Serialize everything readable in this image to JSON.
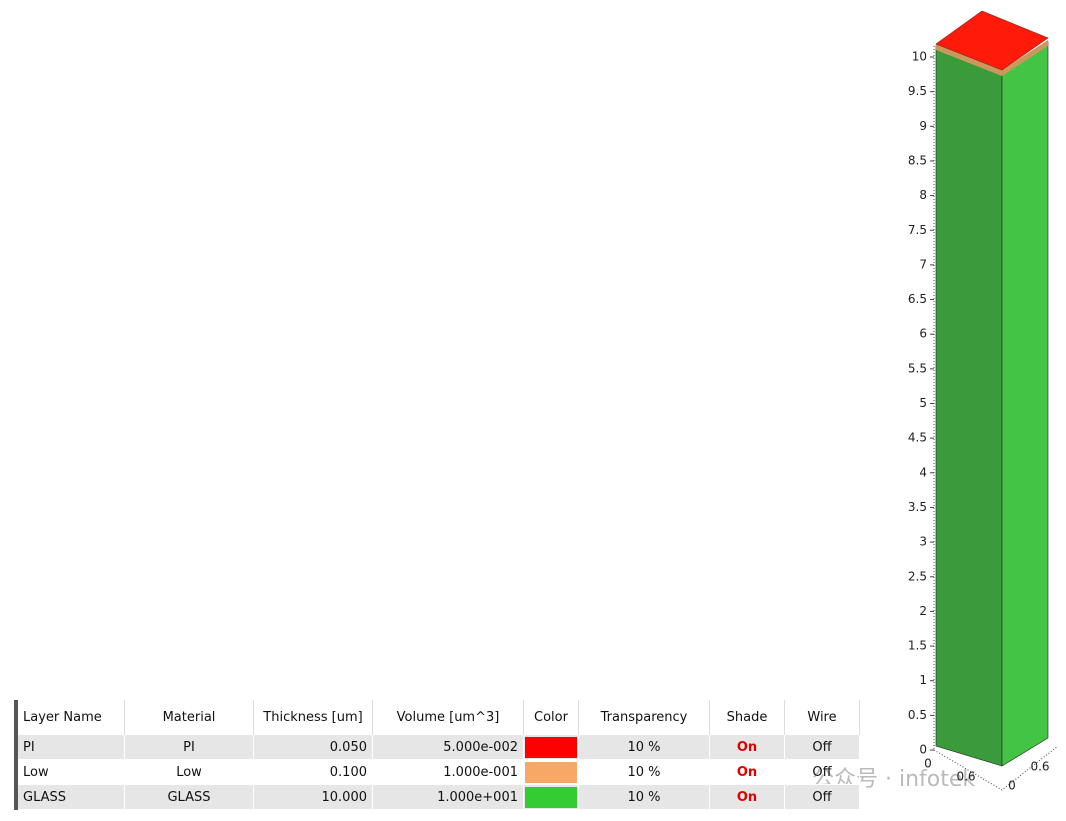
{
  "table": {
    "headers": [
      "Layer Name",
      "Material",
      "Thickness [um]",
      "Volume [um^3]",
      "Color",
      "Transparency",
      "Shade",
      "Wire"
    ],
    "rows": [
      [
        "PI",
        "PI",
        "0.050",
        "5.000e-002",
        "#ff0000",
        "10 %",
        "On",
        "Off"
      ],
      [
        "Low",
        "Low",
        "0.100",
        "1.000e-001",
        "#f7a866",
        "10 %",
        "On",
        "Off"
      ],
      [
        "GLASS",
        "GLASS",
        "10.000",
        "1.000e+001",
        "#33cc33",
        "10 %",
        "On",
        "Off"
      ]
    ]
  },
  "view3d": {
    "zlim": [
      0,
      10
    ],
    "zticks": [
      0,
      0.5,
      1,
      1.5,
      2,
      2.5,
      3,
      3.5,
      4,
      4.5,
      5,
      5.5,
      6,
      6.5,
      7,
      7.5,
      8,
      8.5,
      9,
      9.5,
      10
    ],
    "base_labels": [
      "0",
      "0.6",
      "0",
      "0.6"
    ]
  },
  "watermark": "公众号 · infotek"
}
